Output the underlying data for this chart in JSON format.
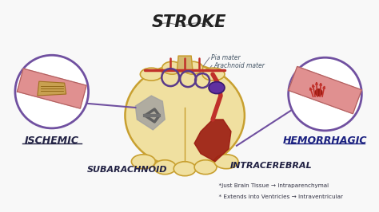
{
  "title": "STROKE",
  "bg_color": "#f8f8f8",
  "labels": {
    "ischemic": "ISCHEMIC",
    "hemorrhagic": "HEMORRHAGIC",
    "subarachnoid": "SUBARACHNOID",
    "intracerebral": "INTRACEREBRAL",
    "pia_mater": "Pia mater",
    "arachnoid_mater": "Arachnoid mater",
    "just_brain": "  *Just Brain Tissue → Intraparenchymal",
    "extends": "  * Extends into Ventricles → Intraventricular"
  },
  "colors": {
    "brain_fill": "#f0e0a0",
    "brain_outline": "#c8a030",
    "blood_red": "#c0302a",
    "dark_red": "#9b1a10",
    "artery_pink": "#e09090",
    "artery_dark": "#b06060",
    "clot_yellow": "#c8a050",
    "purple_vessel": "#5a3a8a",
    "gray_infarct": "#909090",
    "circle_outline": "#7050a0",
    "title_color": "#222222",
    "label_dark": "#222244",
    "label_blue": "#1a2080",
    "label_gray": "#444455"
  },
  "figsize": [
    4.74,
    2.66
  ],
  "dpi": 100
}
